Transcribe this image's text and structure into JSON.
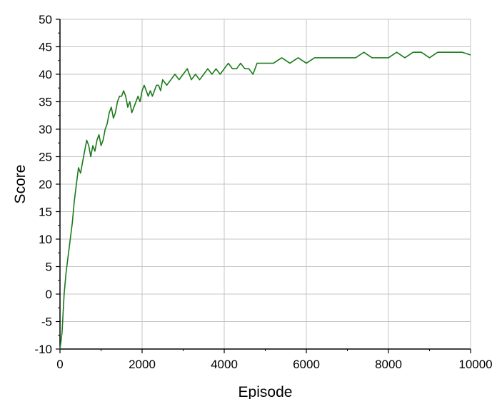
{
  "chart_data": {
    "type": "line",
    "title": "",
    "xlabel": "Episode",
    "ylabel": "Score",
    "xlim": [
      0,
      10000
    ],
    "ylim": [
      -10,
      50
    ],
    "x_ticks": [
      0,
      2000,
      4000,
      6000,
      8000,
      10000
    ],
    "y_ticks": [
      -10,
      -5,
      0,
      5,
      10,
      15,
      20,
      25,
      30,
      35,
      40,
      45,
      50
    ],
    "grid": true,
    "legend": "none",
    "line_color": "#1a7a1a",
    "series": [
      {
        "x": [
          0,
          50,
          100,
          150,
          200,
          250,
          300,
          350,
          400,
          450,
          500,
          550,
          600,
          650,
          700,
          750,
          800,
          850,
          900,
          950,
          1000,
          1050,
          1100,
          1150,
          1200,
          1250,
          1300,
          1350,
          1400,
          1450,
          1500,
          1550,
          1600,
          1650,
          1700,
          1750,
          1800,
          1850,
          1900,
          1950,
          2000,
          2050,
          2100,
          2150,
          2200,
          2250,
          2300,
          2350,
          2400,
          2450,
          2500,
          2600,
          2700,
          2800,
          2900,
          3000,
          3100,
          3200,
          3300,
          3400,
          3500,
          3600,
          3700,
          3800,
          3900,
          4000,
          4100,
          4200,
          4300,
          4400,
          4500,
          4600,
          4700,
          4800,
          4900,
          5000,
          5200,
          5400,
          5600,
          5800,
          6000,
          6200,
          6400,
          6600,
          6800,
          7000,
          7200,
          7400,
          7600,
          7800,
          8000,
          8200,
          8400,
          8600,
          8800,
          9000,
          9200,
          9400,
          9600,
          9800,
          10000
        ],
        "y": [
          -10,
          -7,
          0,
          4,
          7,
          10,
          13,
          17,
          20,
          23,
          22,
          24,
          26,
          28,
          27,
          25,
          27,
          26,
          28,
          29,
          27,
          28,
          30,
          31,
          33,
          34,
          32,
          33,
          35,
          36,
          36,
          37,
          36,
          34,
          35,
          33,
          34,
          35,
          36,
          35,
          37,
          38,
          37,
          36,
          37,
          36,
          37,
          38,
          38,
          37,
          39,
          38,
          39,
          40,
          39,
          40,
          41,
          39,
          40,
          39,
          40,
          41,
          40,
          41,
          40,
          41,
          42,
          41,
          41,
          42,
          41,
          41,
          40,
          42,
          42,
          42,
          42,
          43,
          42,
          43,
          42,
          43,
          43,
          43,
          43,
          43,
          43,
          44,
          43,
          43,
          43,
          44,
          43,
          44,
          44,
          43,
          44,
          44,
          44,
          44,
          43.5
        ]
      }
    ]
  }
}
